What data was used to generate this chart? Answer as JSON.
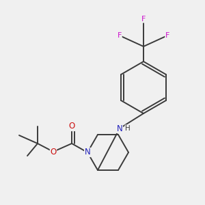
{
  "background_color": "#f0f0f0",
  "bond_color": "#3a3a3a",
  "figsize": [
    3.0,
    3.0
  ],
  "dpi": 100,
  "colors": {
    "N": "#2222bb",
    "O": "#cc1111",
    "F": "#cc11cc",
    "C": "#3a3a3a",
    "H": "#3a3a3a",
    "bond": "#3a3a3a"
  }
}
